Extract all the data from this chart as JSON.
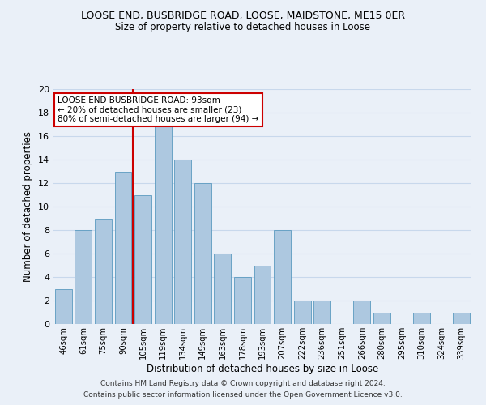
{
  "title": "LOOSE END, BUSBRIDGE ROAD, LOOSE, MAIDSTONE, ME15 0ER",
  "subtitle": "Size of property relative to detached houses in Loose",
  "xlabel": "Distribution of detached houses by size in Loose",
  "ylabel": "Number of detached properties",
  "bar_labels": [
    "46sqm",
    "61sqm",
    "75sqm",
    "90sqm",
    "105sqm",
    "119sqm",
    "134sqm",
    "149sqm",
    "163sqm",
    "178sqm",
    "193sqm",
    "207sqm",
    "222sqm",
    "236sqm",
    "251sqm",
    "266sqm",
    "280sqm",
    "295sqm",
    "310sqm",
    "324sqm",
    "339sqm"
  ],
  "bar_values": [
    3,
    8,
    9,
    13,
    11,
    17,
    14,
    12,
    6,
    4,
    5,
    8,
    2,
    2,
    0,
    2,
    1,
    0,
    1,
    0,
    1
  ],
  "bar_color": "#adc8e0",
  "bar_edgecolor": "#5a9abf",
  "vline_x": 3.5,
  "vline_color": "#cc0000",
  "annotation_title": "LOOSE END BUSBRIDGE ROAD: 93sqm",
  "annotation_line1": "← 20% of detached houses are smaller (23)",
  "annotation_line2": "80% of semi-detached houses are larger (94) →",
  "annotation_box_facecolor": "#ffffff",
  "annotation_box_edgecolor": "#cc0000",
  "ylim": [
    0,
    20
  ],
  "yticks": [
    0,
    2,
    4,
    6,
    8,
    10,
    12,
    14,
    16,
    18,
    20
  ],
  "footer1": "Contains HM Land Registry data © Crown copyright and database right 2024.",
  "footer2": "Contains public sector information licensed under the Open Government Licence v3.0.",
  "grid_color": "#c8d8ec",
  "background_color": "#eaf0f8"
}
